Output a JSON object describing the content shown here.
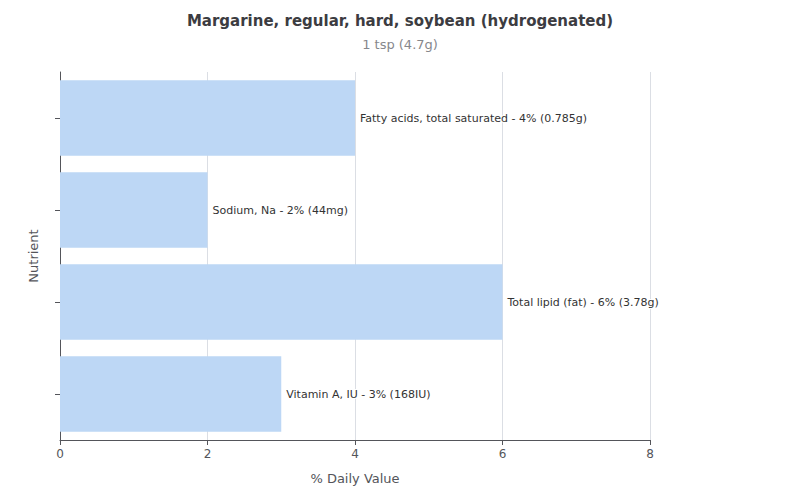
{
  "chart_data": {
    "type": "bar",
    "orientation": "horizontal",
    "title": "Margarine, regular, hard, soybean (hydrogenated)",
    "subtitle": "1 tsp (4.7g)",
    "xlabel": "% Daily Value",
    "ylabel": "Nutrient",
    "categories": [
      null,
      null,
      null,
      null
    ],
    "values": [
      4,
      2,
      6,
      3
    ],
    "value_labels": [
      "Fatty acids, total saturated - 4% (0.785g)",
      "Sodium, Na - 2% (44mg)",
      "Total lipid (fat) - 6% (3.78g)",
      "Vitamin A, IU - 3% (168IU)"
    ],
    "data_labels": true,
    "color": "#bdd7f5",
    "xlim": [
      0,
      8
    ],
    "xticks": [
      0,
      2,
      4,
      6,
      8
    ],
    "tick_labels": "x",
    "grid": true
  }
}
